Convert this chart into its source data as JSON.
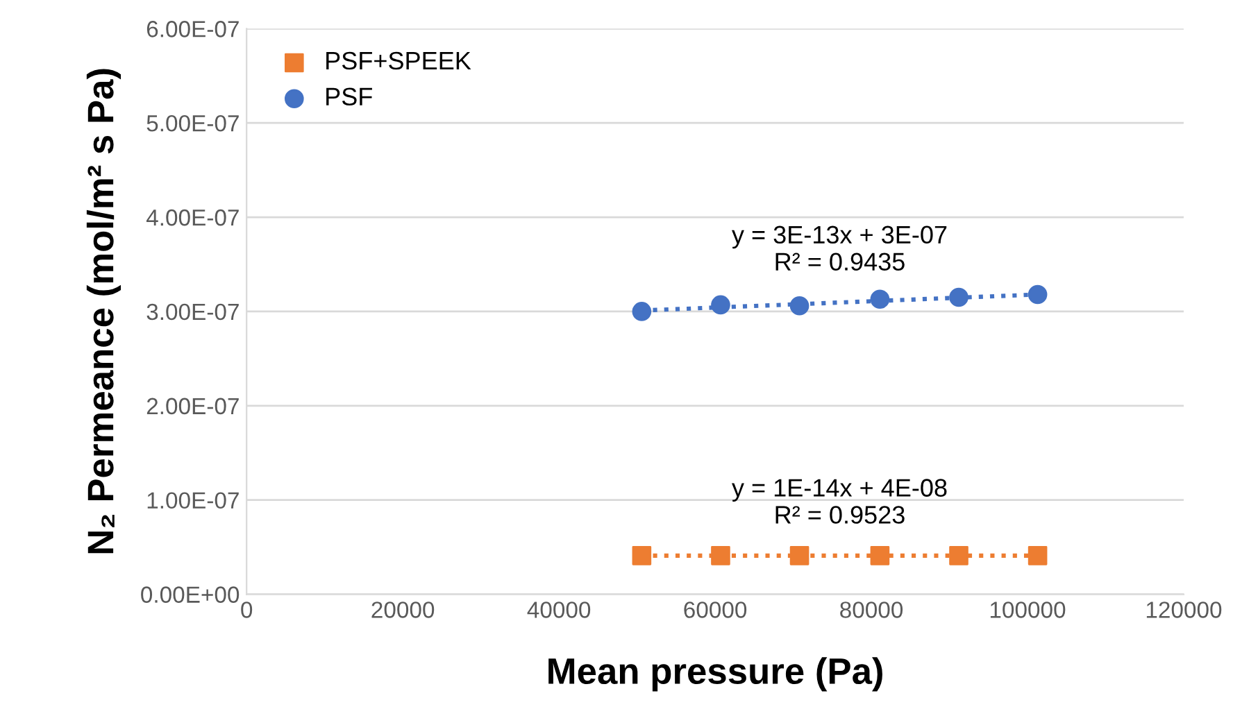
{
  "chart_data": {
    "type": "scatter",
    "xlabel": "Mean pressure (Pa)",
    "ylabel": "N₂ Permeance (mol/m² s Pa)",
    "xlim": [
      0,
      120000
    ],
    "xticks": [
      0,
      20000,
      40000,
      60000,
      80000,
      100000,
      120000
    ],
    "ylim": [
      0,
      6e-07
    ],
    "yticks": [
      {
        "value": 0,
        "label": "0.00E+00"
      },
      {
        "value": 1e-07,
        "label": "1.00E-07"
      },
      {
        "value": 2e-07,
        "label": "2.00E-07"
      },
      {
        "value": 3e-07,
        "label": "3.00E-07"
      },
      {
        "value": 4e-07,
        "label": "4.00E-07"
      },
      {
        "value": 5e-07,
        "label": "5.00E-07"
      },
      {
        "value": 6e-07,
        "label": "6.00E-07"
      }
    ],
    "grid": "y",
    "legend": "top left",
    "series": [
      {
        "name": "PSF+SPEEK",
        "marker": "square",
        "color": "#ed7d31",
        "x": [
          50600,
          60700,
          70800,
          81100,
          91200,
          101300
        ],
        "values": [
          4.1e-08,
          4.1e-08,
          4.1e-08,
          4.1e-08,
          4.1e-08,
          4.1e-08
        ]
      },
      {
        "name": "PSF",
        "marker": "circle",
        "color": "#4472c4",
        "x": [
          50600,
          60700,
          70800,
          81100,
          91200,
          101300
        ],
        "values": [
          3e-07,
          3.07e-07,
          3.06e-07,
          3.13e-07,
          3.15e-07,
          3.18e-07
        ]
      },
      {
        "type": "line",
        "line_style": "dotted",
        "color": "#4472c4",
        "x": [
          50600,
          101300
        ],
        "values": [
          3.01e-07,
          3.18e-07
        ]
      },
      {
        "type": "line",
        "line_style": "dotted",
        "color": "#ed7d31",
        "x": [
          50600,
          101300
        ],
        "values": [
          4.1e-08,
          4.1e-08
        ]
      }
    ],
    "annotations": [
      "y = 3E-13x + 3E-07\nR² = 0.9435",
      "y = 1E-14x + 4E-08\nR² = 0.9523"
    ]
  }
}
